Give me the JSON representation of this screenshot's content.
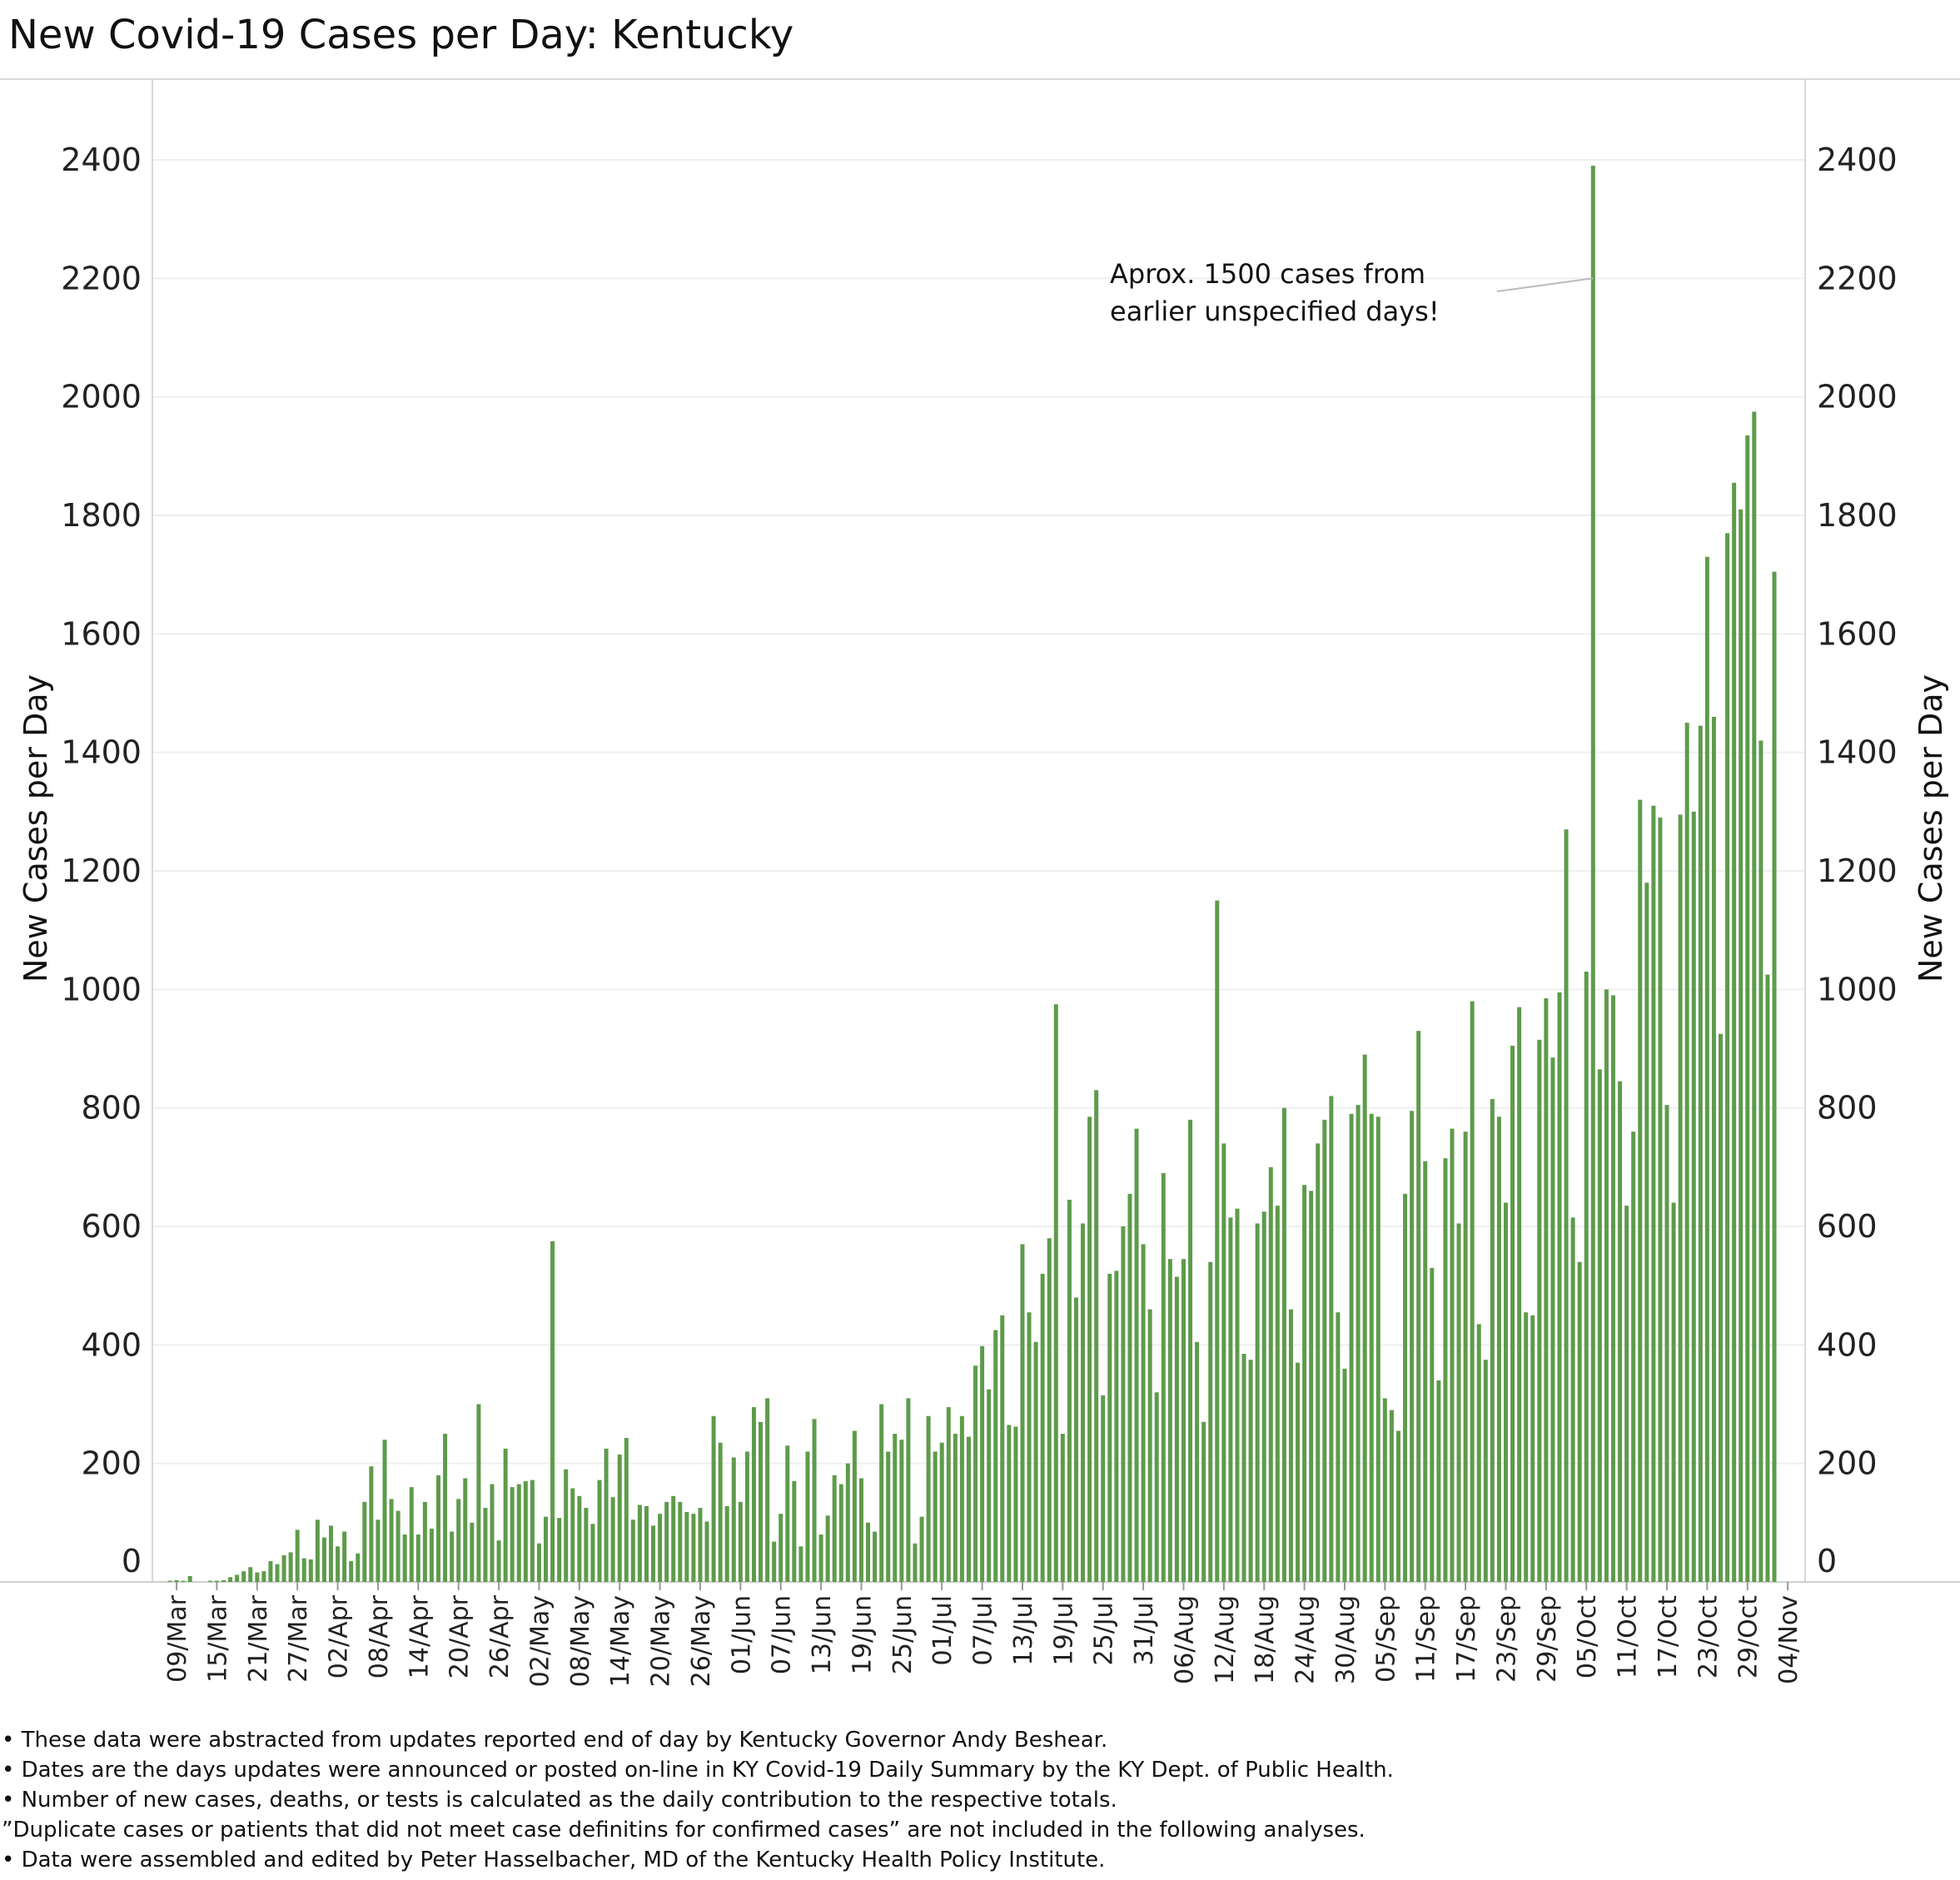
{
  "chart_data": {
    "type": "bar",
    "title": "New Covid-19 Cases per Day: Kentucky",
    "ylabel": "New Cases per Day",
    "ylim": [
      0,
      2500
    ],
    "yticks": [
      0,
      200,
      400,
      600,
      800,
      1000,
      1200,
      1400,
      1600,
      1800,
      2000,
      2200,
      2400
    ],
    "start_date": "2020-03-08",
    "x_tick_labels": [
      "09/Mar",
      "15/Mar",
      "21/Mar",
      "27/Mar",
      "02/Apr",
      "08/Apr",
      "14/Apr",
      "20/Apr",
      "26/Apr",
      "02/May",
      "08/May",
      "14/May",
      "20/May",
      "26/May",
      "01/Jun",
      "07/Jun",
      "13/Jun",
      "19/Jun",
      "25/Jun",
      "01/Jul",
      "07/Jul",
      "13/Jul",
      "19/Jul",
      "25/Jul",
      "31/Jul",
      "06/Aug",
      "12/Aug",
      "18/Aug",
      "24/Aug",
      "30/Aug",
      "05/Sep",
      "11/Sep",
      "17/Sep",
      "23/Sep",
      "29/Sep",
      "05/Oct",
      "11/Oct",
      "17/Oct",
      "23/Oct",
      "29/Oct",
      "04/Nov"
    ],
    "bar_color": "#5e9b4b",
    "grid": true,
    "annotation": {
      "text_lines": [
        "Aprox. 1500 cases from",
        "earlier unspecified days!"
      ],
      "target_date": "07/Oct"
    },
    "values": [
      2,
      3,
      2,
      10,
      0,
      0,
      2,
      2,
      3,
      8,
      12,
      18,
      25,
      16,
      18,
      35,
      30,
      45,
      50,
      88,
      40,
      38,
      105,
      75,
      95,
      60,
      85,
      35,
      48,
      135,
      195,
      105,
      240,
      140,
      120,
      80,
      160,
      80,
      135,
      90,
      180,
      250,
      85,
      140,
      175,
      100,
      300,
      125,
      165,
      70,
      225,
      160,
      165,
      170,
      172,
      65,
      110,
      575,
      108,
      190,
      158,
      145,
      125,
      98,
      172,
      225,
      143,
      215,
      243,
      105,
      130,
      128,
      95,
      115,
      135,
      145,
      135,
      118,
      115,
      125,
      102,
      280,
      235,
      128,
      210,
      135,
      220,
      295,
      270,
      310,
      68,
      115,
      230,
      170,
      60,
      220,
      275,
      80,
      112,
      180,
      165,
      200,
      255,
      175,
      100,
      85,
      300,
      220,
      250,
      240,
      310,
      65,
      110,
      280,
      220,
      235,
      295,
      250,
      280,
      245,
      365,
      398,
      325,
      425,
      450,
      265,
      262,
      570,
      455,
      405,
      520,
      580,
      975,
      250,
      645,
      480,
      605,
      785,
      830,
      315,
      520,
      525,
      600,
      655,
      765,
      570,
      460,
      320,
      690,
      545,
      515,
      545,
      780,
      405,
      270,
      540,
      1150,
      740,
      615,
      630,
      385,
      375,
      605,
      625,
      700,
      635,
      800,
      460,
      370,
      670,
      660,
      740,
      780,
      820,
      455,
      360,
      790,
      805,
      890,
      790,
      785,
      310,
      290,
      255,
      655,
      795,
      930,
      710,
      530,
      340,
      715,
      765,
      605,
      760,
      980,
      435,
      375,
      815,
      785,
      640,
      905,
      970,
      455,
      450,
      915,
      985,
      885,
      995,
      1270,
      615,
      540,
      1030,
      2390,
      865,
      1000,
      990,
      845,
      635,
      760,
      1320,
      1180,
      1310,
      1290,
      805,
      640,
      1295,
      1450,
      1300,
      1445,
      1730,
      1460,
      925,
      1770,
      1855,
      1810,
      1935,
      1975,
      1420,
      1025,
      1705
    ]
  },
  "footnotes": [
    "• These data were abstracted from updates reported end of day by Kentucky Governor Andy Beshear.",
    "• Dates are the days  updates were announced or posted on-line in KY Covid-19 Daily Summary by the KY Dept. of Public Health.",
    "• Number of new cases, deaths, or tests is calculated as the daily contribution to the respective totals.",
    "   ”Duplicate cases or patients that did not meet  case definitins for confirmed cases” are not included in the following analyses.",
    "• Data were assembled and edited by Peter Hasselbacher, MD of the Kentucky Health Policy Institute."
  ]
}
